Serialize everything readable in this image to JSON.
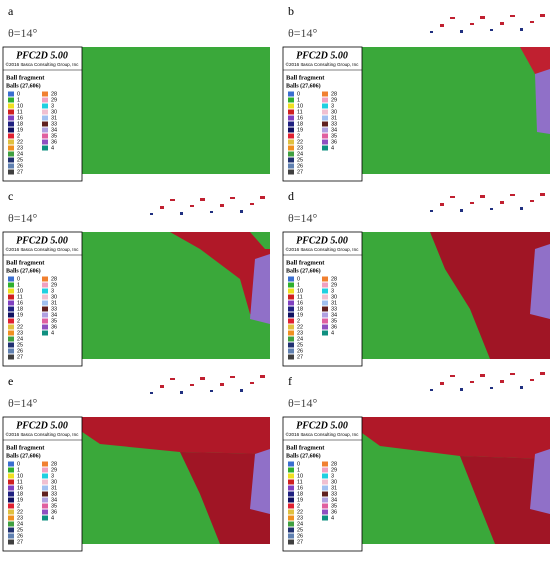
{
  "panels": [
    {
      "label": "a",
      "theta": "θ=14°"
    },
    {
      "label": "b",
      "theta": "θ=14°"
    },
    {
      "label": "c",
      "theta": "θ=14°"
    },
    {
      "label": "d",
      "theta": "θ=14°"
    },
    {
      "label": "e",
      "theta": "θ=14°"
    },
    {
      "label": "f",
      "theta": "θ=14°"
    }
  ],
  "title": "PFC2D 5.00",
  "copyright": "©2016 Itasca Consulting Group, Inc",
  "legend_title": "Ball fragment",
  "legend_subtitle": "Balls (27,606)",
  "legend_items": [
    {
      "label": "0",
      "color": "#3a6fd0"
    },
    {
      "label": "1",
      "color": "#2fb02f"
    },
    {
      "label": "10",
      "color": "#f0e020"
    },
    {
      "label": "11",
      "color": "#d02020"
    },
    {
      "label": "16",
      "color": "#8040c0"
    },
    {
      "label": "18",
      "color": "#202080"
    },
    {
      "label": "19",
      "color": "#101060"
    },
    {
      "label": "2",
      "color": "#e02030"
    },
    {
      "label": "22",
      "color": "#e0c040"
    },
    {
      "label": "23",
      "color": "#f09020"
    },
    {
      "label": "24",
      "color": "#40a040"
    },
    {
      "label": "25",
      "color": "#203070"
    },
    {
      "label": "26",
      "color": "#6080b0"
    },
    {
      "label": "27",
      "color": "#404040"
    },
    {
      "label": "28",
      "color": "#f08030"
    },
    {
      "label": "29",
      "color": "#f0a0c0"
    },
    {
      "label": "3",
      "color": "#20d0e0"
    },
    {
      "label": "30",
      "color": "#f0c0d0"
    },
    {
      "label": "31",
      "color": "#a0c0f0"
    },
    {
      "label": "33",
      "color": "#602020"
    },
    {
      "label": "34",
      "color": "#b0a0e0"
    },
    {
      "label": "35",
      "color": "#e060a0"
    },
    {
      "label": "36",
      "color": "#9050c0"
    },
    {
      "label": "4",
      "color": "#109080"
    }
  ]
}
